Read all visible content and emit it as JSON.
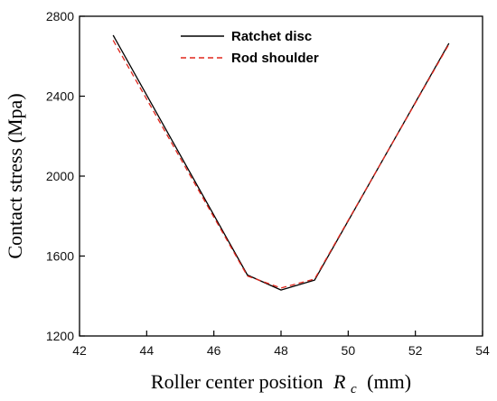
{
  "chart_data": {
    "type": "line",
    "title": "",
    "xlabel": "Roller center position",
    "xlabel_symbol": "R",
    "xlabel_subscript": "c",
    "xlabel_unit": "(mm)",
    "ylabel": "Contact stress (Mpa)",
    "xlim": [
      42,
      54
    ],
    "ylim": [
      1200,
      2800
    ],
    "xticks": [
      42,
      44,
      46,
      48,
      50,
      52,
      54
    ],
    "yticks": [
      1200,
      1600,
      2000,
      2400,
      2800
    ],
    "grid": false,
    "legend_position": "top-center",
    "series": [
      {
        "name": "Ratchet disc",
        "color": "#000000",
        "dash": "solid",
        "x": [
          43,
          47,
          48,
          49,
          53
        ],
        "y": [
          2705,
          1505,
          1430,
          1480,
          2665
        ]
      },
      {
        "name": "Rod shoulder",
        "color": "#e0261c",
        "dash": "dashed",
        "x": [
          43,
          47,
          48,
          49,
          53
        ],
        "y": [
          2680,
          1500,
          1440,
          1485,
          2660
        ]
      }
    ]
  }
}
